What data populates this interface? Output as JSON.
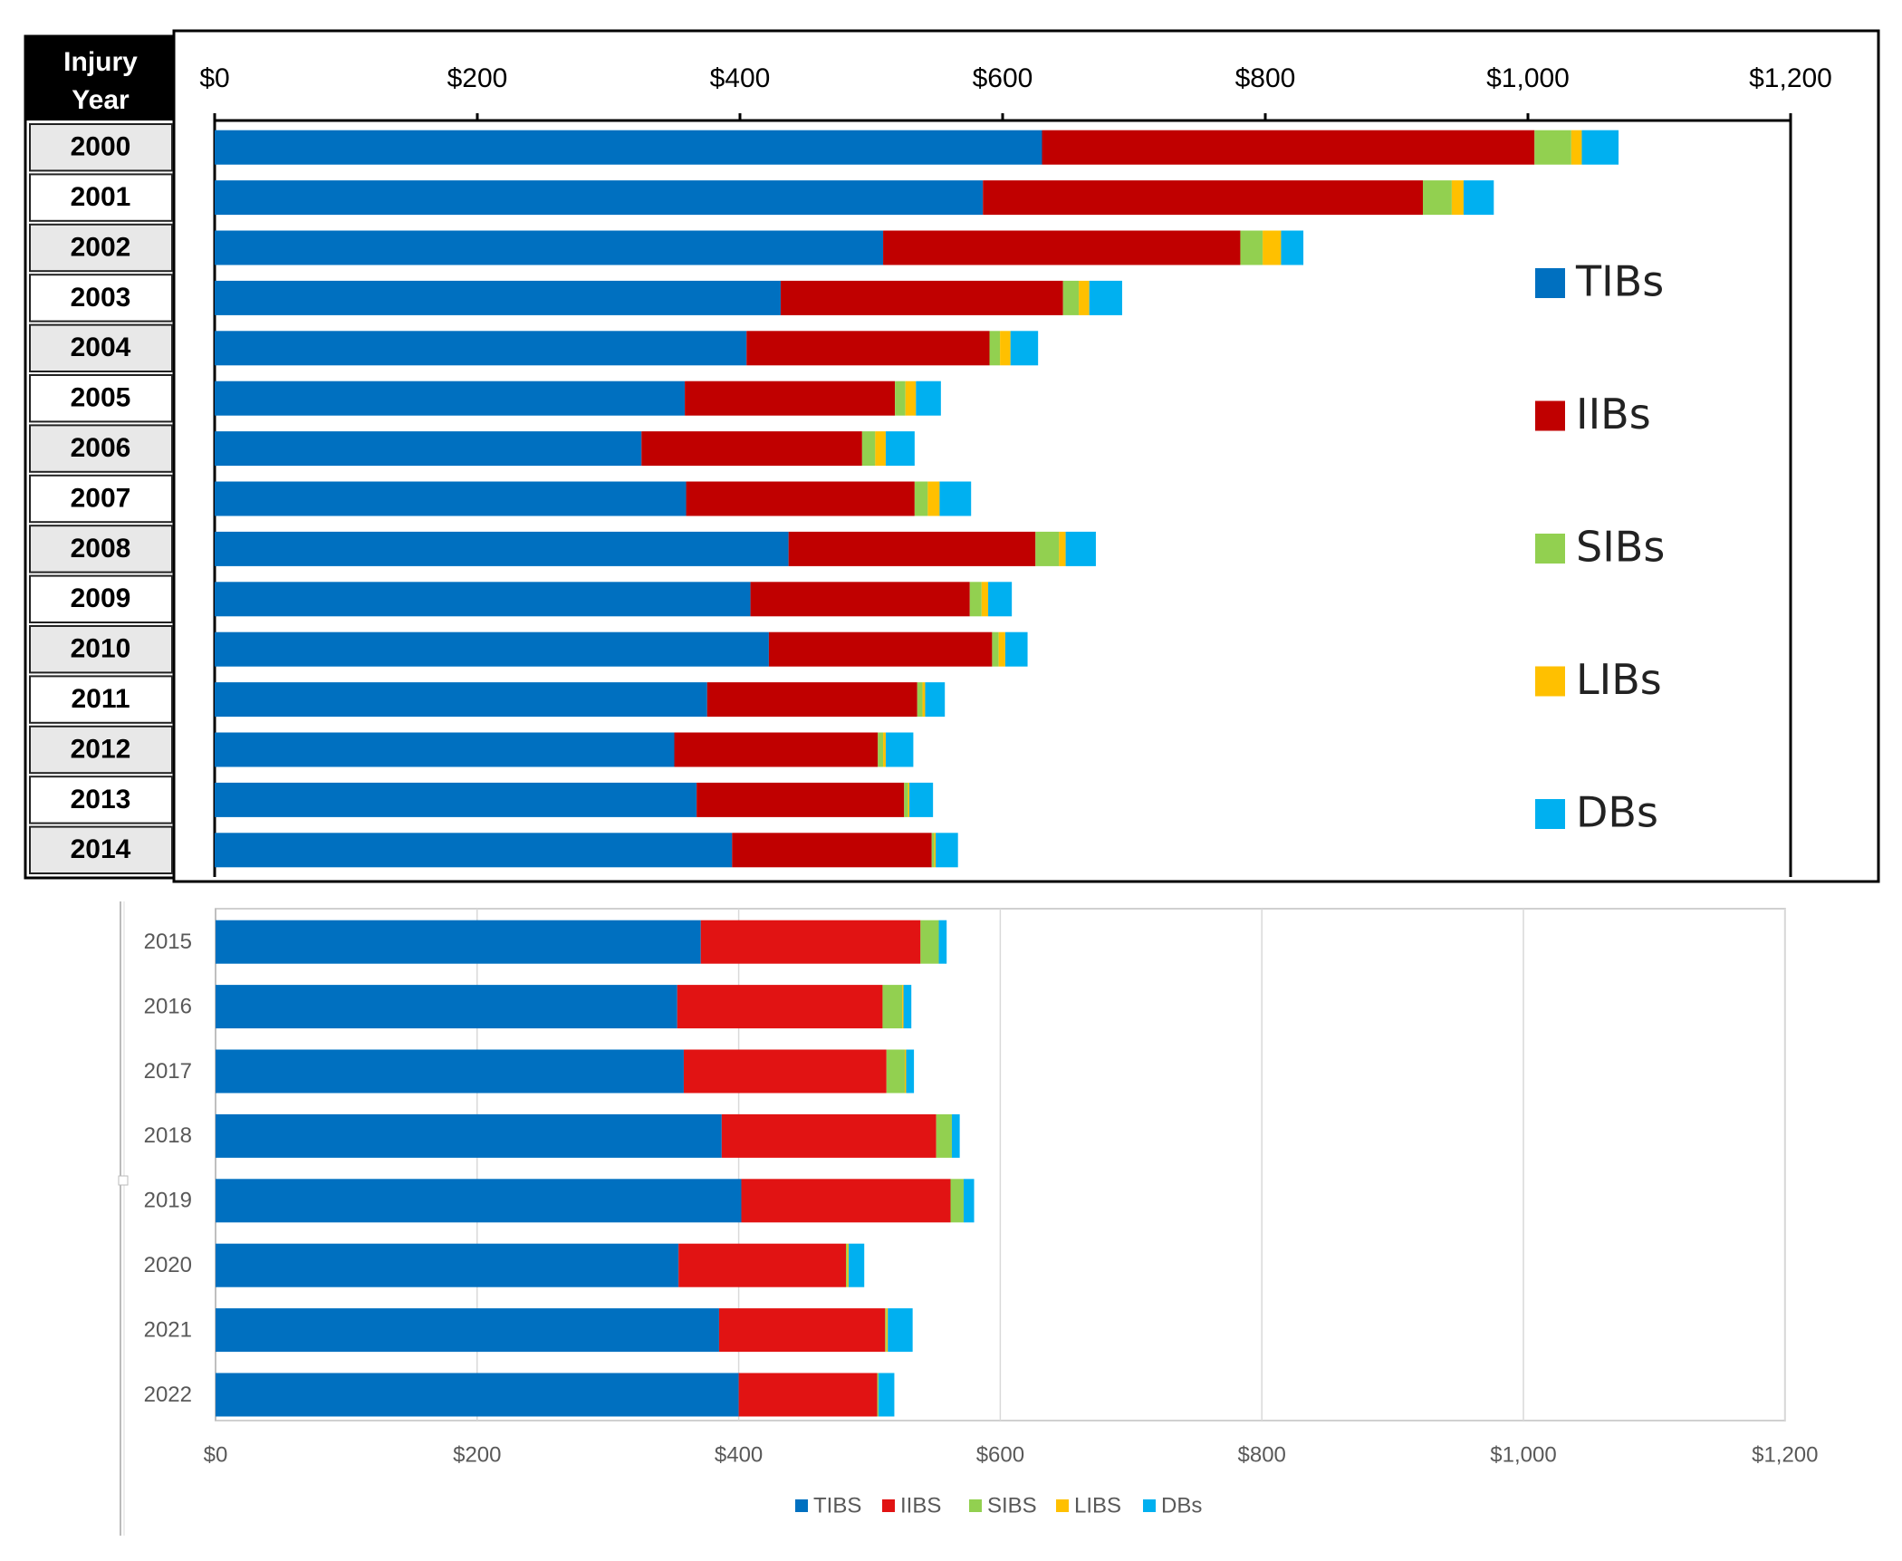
{
  "chart_data": [
    {
      "type": "bar",
      "orientation": "horizontal",
      "stacked": true,
      "title": "",
      "row_header": "Injury Year",
      "categories": [
        "2000",
        "2001",
        "2002",
        "2003",
        "2004",
        "2005",
        "2006",
        "2007",
        "2008",
        "2009",
        "2010",
        "2011",
        "2012",
        "2013",
        "2014"
      ],
      "x_ticks": [
        "$0",
        "$200",
        "$400",
        "$600",
        "$800",
        "$1,000",
        "$1,200"
      ],
      "xlim": [
        0,
        1200
      ],
      "grid": false,
      "legend_position": "right",
      "series": [
        {
          "name": "TIBs",
          "color": "#0070C0",
          "values": [
            630,
            585,
            509,
            431,
            405,
            358,
            325,
            359,
            437,
            408,
            422,
            375,
            350,
            367,
            394
          ]
        },
        {
          "name": "IIBs",
          "color": "#C00000",
          "values": [
            375,
            335,
            272,
            215,
            185,
            160,
            168,
            174,
            188,
            167,
            170,
            160,
            155,
            158,
            152
          ]
        },
        {
          "name": "SIBs",
          "color": "#92D050",
          "values": [
            28,
            22,
            17,
            12,
            8,
            8,
            10,
            10,
            18,
            9,
            5,
            4,
            4,
            3,
            2
          ]
        },
        {
          "name": "LIBs",
          "color": "#FFC000",
          "values": [
            8,
            9,
            14,
            8,
            8,
            8,
            8,
            9,
            5,
            5,
            5,
            2,
            2,
            1,
            1
          ]
        },
        {
          "name": "DBs",
          "color": "#00B0F0",
          "values": [
            28,
            23,
            17,
            25,
            21,
            19,
            22,
            24,
            23,
            18,
            17,
            15,
            21,
            18,
            17
          ]
        }
      ]
    },
    {
      "type": "bar",
      "orientation": "horizontal",
      "stacked": true,
      "title": "",
      "categories": [
        "2015",
        "2016",
        "2017",
        "2018",
        "2019",
        "2020",
        "2021",
        "2022"
      ],
      "x_ticks": [
        "$0",
        "$200",
        "$400",
        "$600",
        "$800",
        "$1,000",
        "$1,200"
      ],
      "xlim": [
        0,
        1200
      ],
      "grid": true,
      "legend_position": "bottom",
      "series": [
        {
          "name": "TIBS",
          "color": "#0070C0",
          "values": [
            371,
            353,
            358,
            387,
            402,
            354,
            385,
            400
          ]
        },
        {
          "name": "IIBS",
          "color": "#E11313",
          "values": [
            168,
            157,
            155,
            164,
            160,
            128,
            127,
            106
          ]
        },
        {
          "name": "SIBS",
          "color": "#92D050",
          "values": [
            14,
            15,
            14,
            12,
            10,
            1,
            1,
            1
          ]
        },
        {
          "name": "LIBS",
          "color": "#FFC000",
          "values": [
            0,
            1,
            1,
            0,
            0,
            1,
            1,
            0
          ]
        },
        {
          "name": "DBs",
          "color": "#00B0F0",
          "values": [
            6,
            6,
            6,
            6,
            8,
            12,
            19,
            12
          ]
        }
      ]
    }
  ]
}
